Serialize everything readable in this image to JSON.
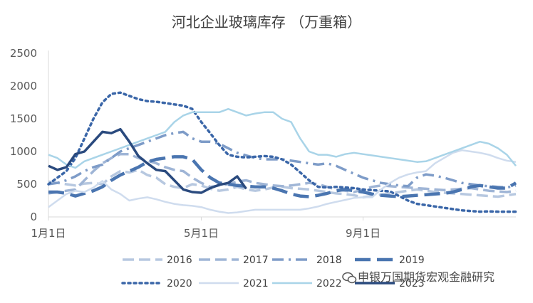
{
  "chart_data": {
    "type": "line",
    "title": "河北企业玻璃库存 （万重箱）",
    "xlabel": "",
    "ylabel": "",
    "ylim": [
      0,
      2500
    ],
    "yticks": [
      "0",
      "500",
      "1000",
      "1500",
      "2000",
      "2500"
    ],
    "xlim": [
      0,
      52
    ],
    "xticks": [
      {
        "label": "1月1日",
        "x": 0
      },
      {
        "label": "5月1日",
        "x": 17
      },
      {
        "label": "9月1日",
        "x": 35
      }
    ],
    "grid": false,
    "legend_position": "bottom",
    "series": [
      {
        "name": "2016",
        "color": "#b7c8e0",
        "dash": "16,7",
        "width": 3.5,
        "values": [
          540,
          520,
          500,
          480,
          510,
          520,
          500,
          620,
          700,
          680,
          720,
          640,
          600,
          500,
          460,
          440,
          500,
          480,
          430,
          400,
          420,
          460,
          420,
          400,
          420,
          450,
          460,
          440,
          430,
          420,
          400,
          380,
          360,
          350,
          330,
          300,
          320,
          340,
          360,
          380,
          400,
          420,
          400,
          380,
          370,
          360,
          350,
          340,
          330,
          320,
          310,
          330,
          350
        ]
      },
      {
        "name": "2017",
        "color": "#9fb5d6",
        "dash": "16,7",
        "width": 3.5,
        "values": [
          360,
          380,
          400,
          420,
          560,
          700,
          820,
          900,
          960,
          960,
          900,
          860,
          820,
          760,
          720,
          700,
          600,
          520,
          460,
          480,
          500,
          540,
          560,
          520,
          500,
          480,
          470,
          480,
          500,
          520,
          500,
          460,
          420,
          400,
          380,
          420,
          460,
          480,
          470,
          460,
          450,
          440,
          430,
          420,
          410,
          420,
          430,
          440,
          420,
          400,
          390,
          380,
          400
        ]
      },
      {
        "name": "2018",
        "color": "#7e9cc8",
        "dash": "16,7,3,7",
        "width": 3.5,
        "values": [
          500,
          520,
          560,
          620,
          700,
          760,
          800,
          900,
          1000,
          1050,
          1100,
          1150,
          1200,
          1250,
          1280,
          1300,
          1200,
          1150,
          1150,
          1120,
          1050,
          980,
          940,
          900,
          880,
          880,
          880,
          860,
          840,
          820,
          800,
          820,
          780,
          720,
          660,
          600,
          560,
          520,
          500,
          480,
          470,
          600,
          650,
          630,
          600,
          560,
          520,
          500,
          480,
          470,
          460,
          450,
          480
        ]
      },
      {
        "name": "2019",
        "color": "#4a75b0",
        "dash": "22,9",
        "width": 4.5,
        "values": [
          380,
          380,
          360,
          320,
          360,
          400,
          460,
          560,
          640,
          700,
          760,
          840,
          880,
          900,
          920,
          920,
          880,
          720,
          600,
          520,
          500,
          480,
          470,
          460,
          460,
          440,
          400,
          350,
          320,
          310,
          330,
          360,
          400,
          420,
          400,
          380,
          350,
          330,
          320,
          310,
          320,
          330,
          340,
          350,
          360,
          380,
          420,
          460,
          480,
          460,
          440,
          440,
          520
        ]
      },
      {
        "name": "2020",
        "color": "#3a66a8",
        "dash": "3,5",
        "width": 3.5,
        "values": [
          500,
          600,
          700,
          900,
          1200,
          1500,
          1750,
          1880,
          1900,
          1850,
          1800,
          1770,
          1760,
          1740,
          1720,
          1700,
          1650,
          1450,
          1280,
          1100,
          950,
          920,
          910,
          920,
          930,
          920,
          880,
          800,
          680,
          560,
          460,
          450,
          460,
          450,
          440,
          420,
          410,
          400,
          390,
          320,
          250,
          200,
          180,
          160,
          140,
          120,
          100,
          90,
          80,
          85,
          80,
          80,
          80
        ]
      },
      {
        "name": "2021",
        "color": "#cfdcee",
        "dash": "",
        "width": 2.5,
        "values": [
          150,
          250,
          350,
          400,
          380,
          450,
          550,
          420,
          350,
          250,
          280,
          300,
          270,
          230,
          200,
          180,
          170,
          150,
          110,
          80,
          60,
          70,
          90,
          110,
          110,
          110,
          110,
          110,
          110,
          130,
          160,
          200,
          230,
          260,
          290,
          300,
          300,
          420,
          520,
          600,
          650,
          680,
          700,
          820,
          900,
          980,
          1020,
          1000,
          980,
          950,
          900,
          860,
          840
        ]
      },
      {
        "name": "2022",
        "color": "#a9d4e8",
        "dash": "",
        "width": 2.5,
        "values": [
          950,
          900,
          800,
          750,
          850,
          900,
          950,
          1000,
          1050,
          1100,
          1150,
          1200,
          1250,
          1300,
          1450,
          1550,
          1600,
          1600,
          1600,
          1600,
          1650,
          1600,
          1550,
          1580,
          1600,
          1600,
          1500,
          1450,
          1200,
          1000,
          950,
          950,
          920,
          960,
          980,
          960,
          940,
          920,
          900,
          880,
          860,
          840,
          850,
          900,
          950,
          1000,
          1050,
          1100,
          1150,
          1120,
          1050,
          950,
          780
        ]
      },
      {
        "name": "2023",
        "color": "#2a4a7e",
        "dash": "",
        "width": 3.5,
        "values": [
          780,
          720,
          760,
          960,
          1000,
          1150,
          1300,
          1280,
          1340,
          1150,
          930,
          820,
          720,
          700,
          560,
          420,
          380,
          370,
          440,
          490,
          520,
          620,
          430,
          null,
          null,
          null,
          null,
          null,
          null,
          null,
          null,
          null,
          null,
          null,
          null,
          null,
          null,
          null,
          null,
          null,
          null,
          null,
          null,
          null,
          null,
          null,
          null,
          null,
          null,
          null,
          null,
          null,
          null
        ]
      }
    ]
  },
  "watermark": {
    "text": "申银万国期货宏观金融研究",
    "icon": "wechat-icon"
  }
}
